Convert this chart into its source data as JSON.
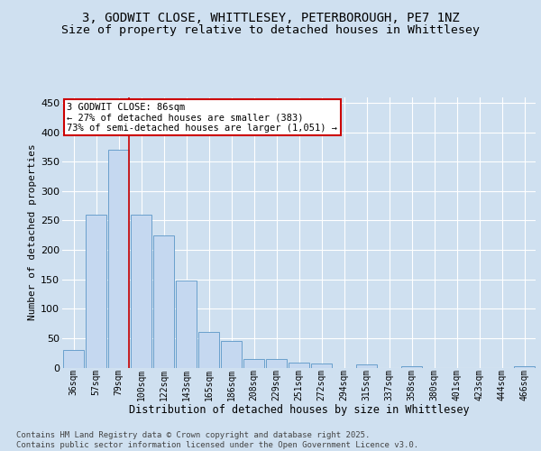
{
  "title_line1": "3, GODWIT CLOSE, WHITTLESEY, PETERBOROUGH, PE7 1NZ",
  "title_line2": "Size of property relative to detached houses in Whittlesey",
  "xlabel": "Distribution of detached houses by size in Whittlesey",
  "ylabel": "Number of detached properties",
  "categories": [
    "36sqm",
    "57sqm",
    "79sqm",
    "100sqm",
    "122sqm",
    "143sqm",
    "165sqm",
    "186sqm",
    "208sqm",
    "229sqm",
    "251sqm",
    "272sqm",
    "294sqm",
    "315sqm",
    "337sqm",
    "358sqm",
    "380sqm",
    "401sqm",
    "423sqm",
    "444sqm",
    "466sqm"
  ],
  "values": [
    30,
    260,
    370,
    260,
    225,
    148,
    60,
    45,
    15,
    15,
    8,
    7,
    0,
    5,
    0,
    2,
    0,
    0,
    0,
    0,
    2
  ],
  "bar_color": "#c5d8f0",
  "bar_edge_color": "#6aa0cc",
  "vline_color": "#cc0000",
  "vline_bin_index": 2,
  "annotation_text": "3 GODWIT CLOSE: 86sqm\n← 27% of detached houses are smaller (383)\n73% of semi-detached houses are larger (1,051) →",
  "annotation_box_facecolor": "#ffffff",
  "annotation_box_edgecolor": "#cc0000",
  "ylim": [
    0,
    460
  ],
  "yticks": [
    0,
    50,
    100,
    150,
    200,
    250,
    300,
    350,
    400,
    450
  ],
  "fig_facecolor": "#cfe0f0",
  "axes_facecolor": "#cfe0f0",
  "grid_color": "#ffffff",
  "title1_fontsize": 10,
  "title2_fontsize": 9.5,
  "xlabel_fontsize": 8.5,
  "ylabel_fontsize": 8,
  "xtick_fontsize": 7,
  "ytick_fontsize": 8,
  "annot_fontsize": 7.5,
  "footer_fontsize": 6.5,
  "footer_text": "Contains HM Land Registry data © Crown copyright and database right 2025.\nContains public sector information licensed under the Open Government Licence v3.0."
}
